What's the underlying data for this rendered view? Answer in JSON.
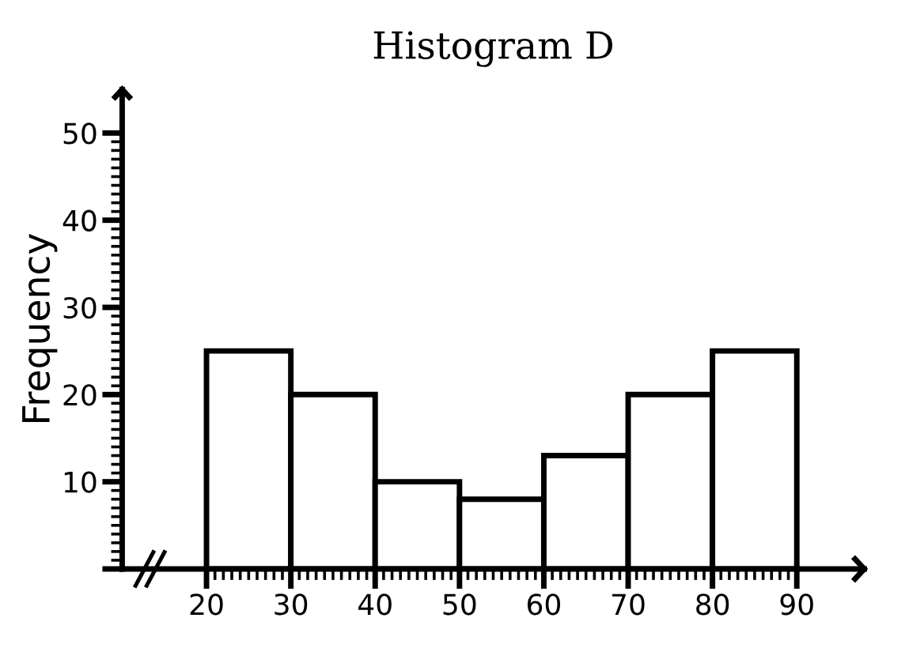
{
  "chart_data": {
    "type": "histogram",
    "title": "Histogram D",
    "ylabel": "Frequency",
    "bins": [
      20,
      30,
      40,
      50,
      60,
      70,
      80,
      90
    ],
    "values": [
      25,
      20,
      10,
      8,
      13,
      20,
      25
    ],
    "color": "#ffffff",
    "xlim": [
      10,
      98
    ],
    "ylim": [
      0,
      55
    ],
    "xticks": [
      20,
      30,
      40,
      50,
      60,
      70,
      80,
      90
    ],
    "yticks": [
      {
        "value": 0,
        "label": null
      },
      10,
      20,
      30,
      40,
      50
    ],
    "grid": false
  }
}
